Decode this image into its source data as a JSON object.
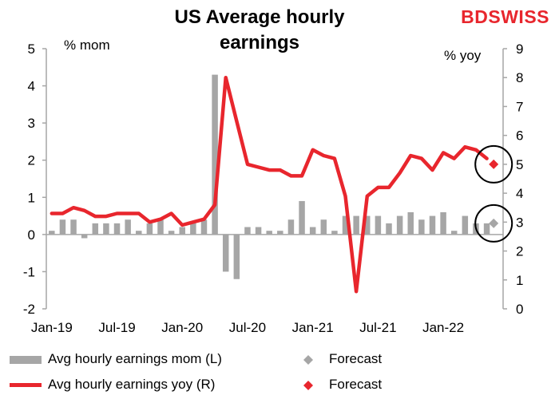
{
  "header": {
    "title_line1": "US Average hourly",
    "title_line2": "earnings",
    "logo": "BDSWISS"
  },
  "axes": {
    "left_unit": "% mom",
    "right_unit": "% yoy"
  },
  "legend": {
    "mom_label": "Avg hourly earnings mom (L)",
    "yoy_label": "Avg hourly earnings yoy (R)",
    "forecast_mom_label": "Forecast",
    "forecast_yoy_label": "Forecast"
  },
  "colors": {
    "bar": "#a6a6a6",
    "line": "#e8262d",
    "forecast_mom": "#a6a6a6",
    "forecast_yoy": "#e8262d",
    "axis": "#a6a6a6",
    "circle": "#000000"
  },
  "chart_data": {
    "type": "bar+line",
    "title": "US Average hourly earnings",
    "ylabel_left": "% mom",
    "ylabel_right": "% yoy",
    "ylim_left": [
      -2,
      5
    ],
    "ylim_right": [
      0,
      9
    ],
    "x_tick_labels": [
      "Jan-19",
      "Jul-19",
      "Jan-20",
      "Jul-20",
      "Jan-21",
      "Jul-21",
      "Jan-22"
    ],
    "left_ticks": [
      "-2",
      "-1",
      "0",
      "1",
      "2",
      "3",
      "4",
      "5"
    ],
    "right_ticks": [
      "0",
      "1",
      "2",
      "3",
      "4",
      "5",
      "6",
      "7",
      "8",
      "9"
    ],
    "x": [
      "Jan-19",
      "Feb-19",
      "Mar-19",
      "Apr-19",
      "May-19",
      "Jun-19",
      "Jul-19",
      "Aug-19",
      "Sep-19",
      "Oct-19",
      "Nov-19",
      "Dec-19",
      "Jan-20",
      "Feb-20",
      "Mar-20",
      "Apr-20",
      "May-20",
      "Jun-20",
      "Jul-20",
      "Aug-20",
      "Sep-20",
      "Oct-20",
      "Nov-20",
      "Dec-20",
      "Jan-21",
      "Feb-21",
      "Mar-21",
      "Apr-21",
      "May-21",
      "Jun-21",
      "Jul-21",
      "Aug-21",
      "Sep-21",
      "Oct-21",
      "Nov-21",
      "Dec-21",
      "Jan-22",
      "Feb-22",
      "Mar-22",
      "Apr-22",
      "May-22"
    ],
    "series": [
      {
        "name": "Avg hourly earnings mom (L)",
        "axis": "left",
        "type": "bar",
        "values": [
          0.1,
          0.4,
          0.4,
          -0.1,
          0.3,
          0.3,
          0.3,
          0.4,
          0.1,
          0.3,
          0.4,
          0.1,
          0.2,
          0.3,
          0.4,
          4.3,
          -1.0,
          -1.2,
          0.2,
          0.2,
          0.1,
          0.1,
          0.4,
          0.9,
          0.2,
          0.4,
          0.1,
          0.5,
          0.5,
          0.5,
          0.5,
          0.3,
          0.5,
          0.6,
          0.4,
          0.5,
          0.6,
          0.1,
          0.5,
          0.3,
          0.3
        ]
      },
      {
        "name": "Avg hourly earnings yoy (R)",
        "axis": "right",
        "type": "line",
        "values": [
          3.3,
          3.3,
          3.5,
          3.4,
          3.2,
          3.2,
          3.3,
          3.3,
          3.3,
          3.0,
          3.1,
          3.3,
          2.9,
          3.0,
          3.1,
          3.6,
          8.0,
          6.5,
          5.0,
          4.9,
          4.8,
          4.8,
          4.6,
          4.6,
          5.5,
          5.3,
          5.2,
          3.9,
          0.6,
          3.9,
          4.2,
          4.2,
          4.7,
          5.3,
          5.2,
          4.8,
          5.4,
          5.2,
          5.6,
          5.5,
          5.2
        ]
      }
    ],
    "forecast": [
      {
        "name": "Forecast",
        "axis": "left",
        "x": "Jun-22",
        "value": 0.3
      },
      {
        "name": "Forecast",
        "axis": "right",
        "x": "Jun-22",
        "value": 5.0
      }
    ]
  }
}
